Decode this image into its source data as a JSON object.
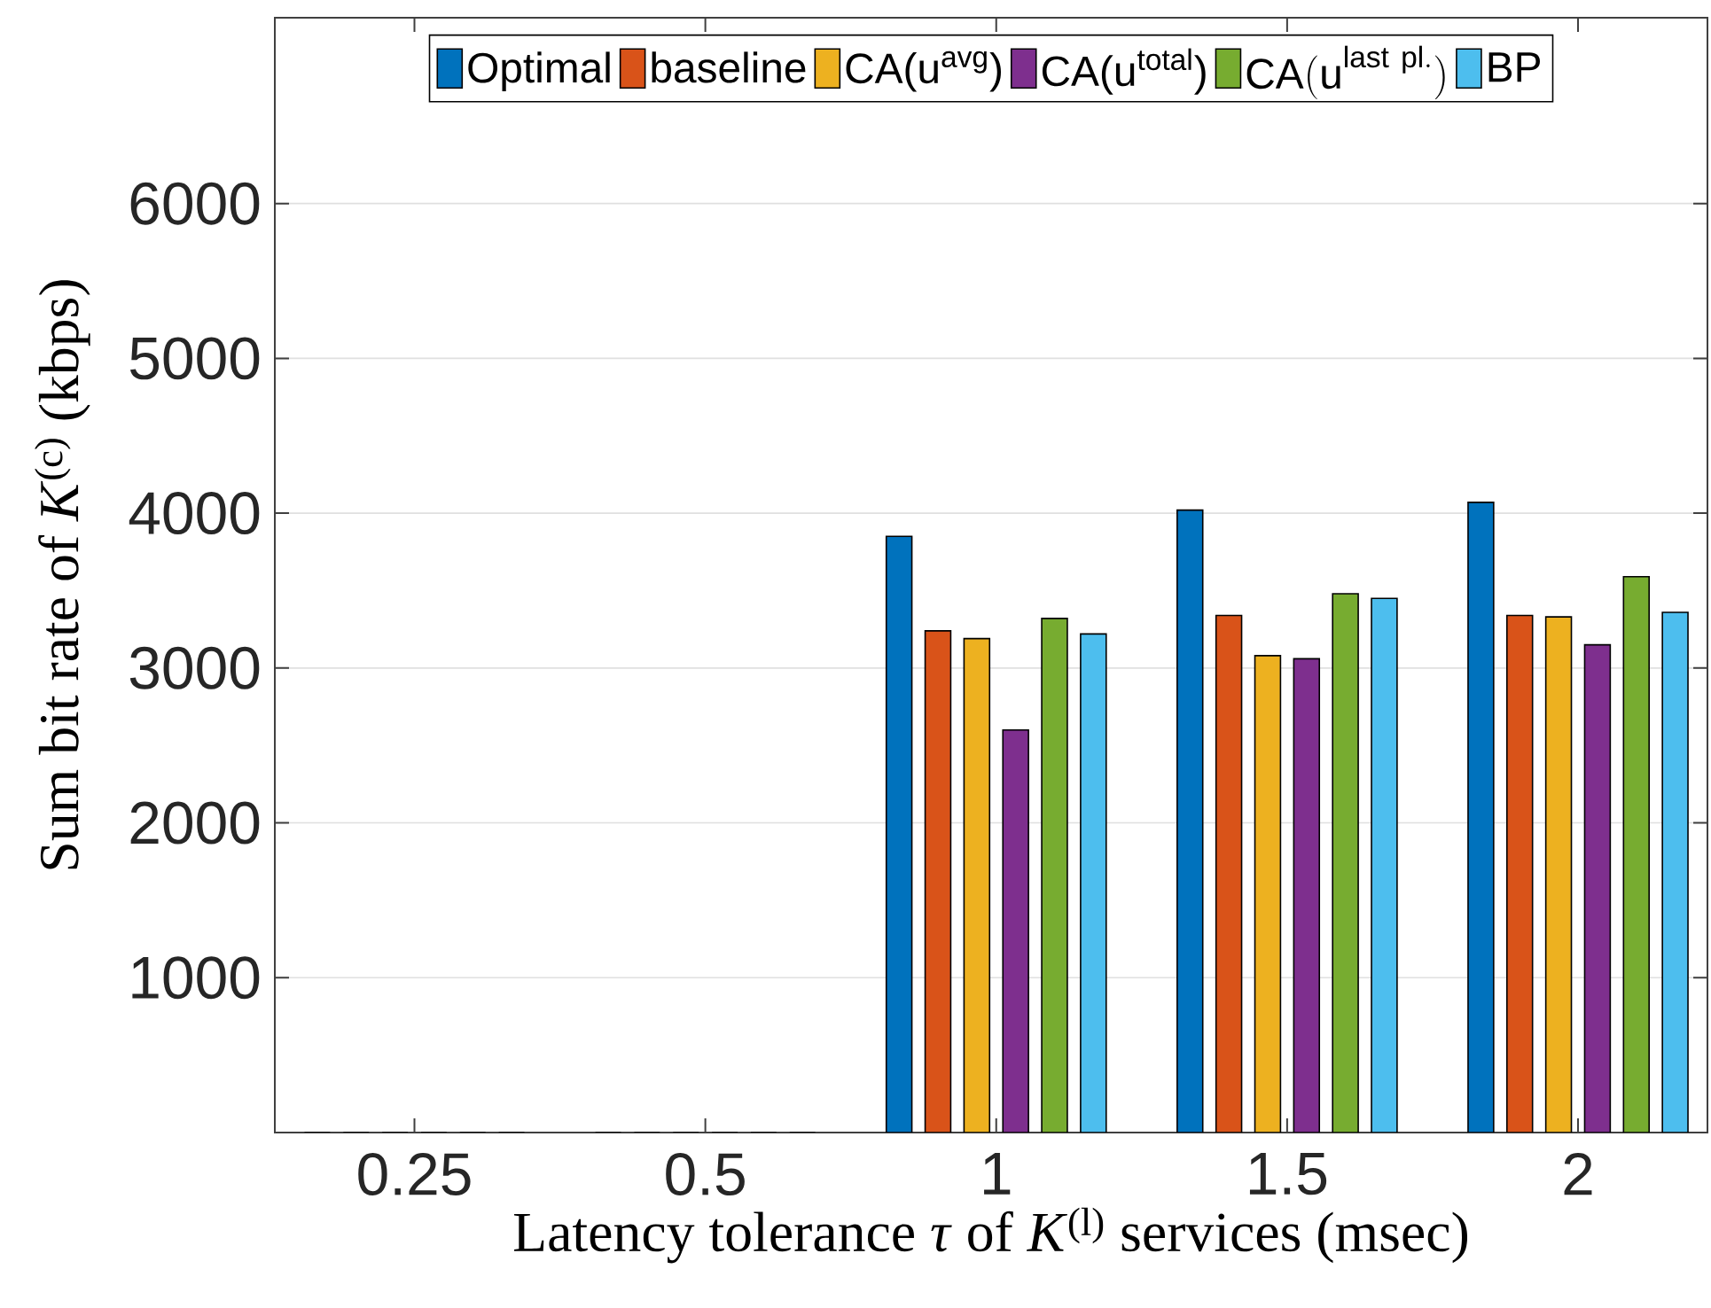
{
  "chart_data": {
    "type": "bar",
    "categories": [
      "0.25",
      "0.5",
      "1",
      "1.5",
      "2"
    ],
    "xlabel": "Latency tolerance *τ* of *K*$^{(l)}$ services (msec)",
    "ylabel": "Sum bit rate of *K*$^{(c)}$ (kbps)",
    "ylim": [
      0,
      7200
    ],
    "yticks": [
      1000,
      2000,
      3000,
      4000,
      5000,
      6000
    ],
    "grid": "y",
    "legend": "top",
    "series": [
      {
        "name": "Optimal",
        "color": "#0072bd",
        "values": [
          0,
          0,
          3850,
          4020,
          4070
        ]
      },
      {
        "name": "baseline",
        "color": "#d95319",
        "values": [
          0,
          0,
          3240,
          3340,
          3340
        ]
      },
      {
        "name": "CA(u$^{avg}$)",
        "color": "#edb120",
        "values": [
          0,
          0,
          3190,
          3080,
          3330
        ]
      },
      {
        "name": "CA(u$^{total}$)",
        "color": "#7e2f8e",
        "values": [
          0,
          0,
          2600,
          3060,
          3150
        ]
      },
      {
        "name": "\\mathrm{CA(u}^{\\mathrm{last\\ pl.}}\\mathrm{)}",
        "color": "#77ac30",
        "values": [
          0,
          0,
          3320,
          3480,
          3590
        ]
      },
      {
        "name": "BP",
        "color": "#4dbeee",
        "values": [
          0,
          0,
          3220,
          3450,
          3360
        ]
      }
    ]
  }
}
